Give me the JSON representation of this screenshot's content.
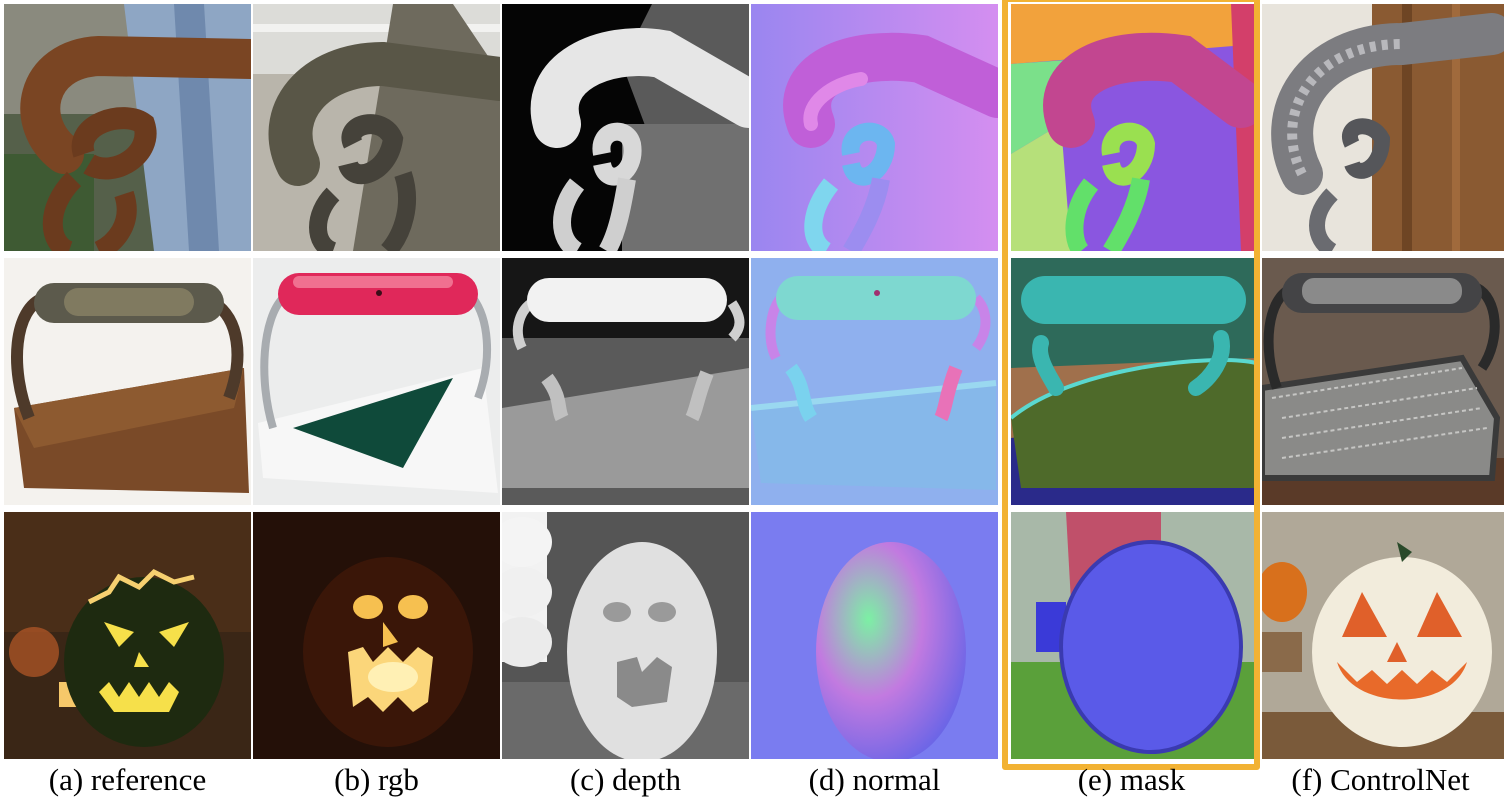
{
  "figure": {
    "captions": [
      "(a) reference",
      "(b) rgb",
      "(c) depth",
      "(d) normal",
      "(e) mask",
      "(f) ControlNet"
    ],
    "highlight_column": "(e) mask",
    "highlight_color": "#f2b233",
    "rows": [
      "chain-hook",
      "iron",
      "pumpkin"
    ]
  }
}
